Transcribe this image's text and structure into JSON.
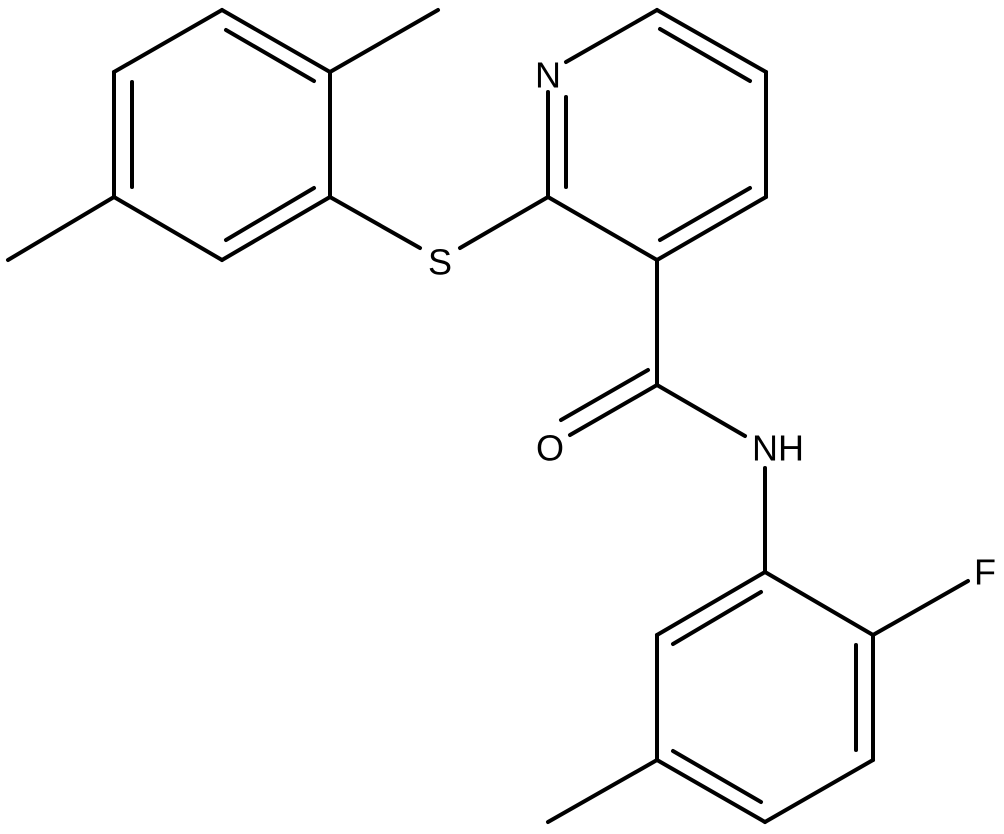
{
  "nodes": [
    {
      "label": "N"
    },
    {
      "label": "S"
    },
    {
      "label": "O"
    },
    {
      "label": "NH"
    },
    {
      "label": "F"
    }
  ]
}
